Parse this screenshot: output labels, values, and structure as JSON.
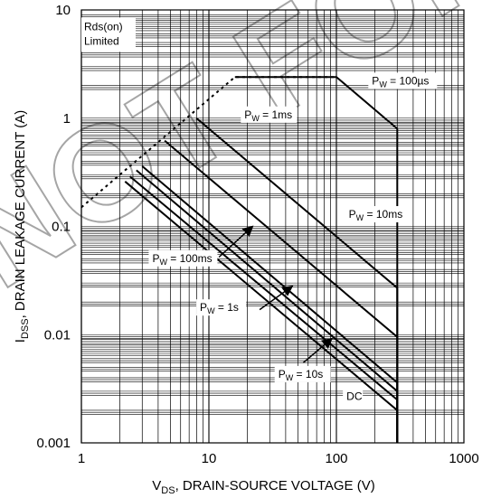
{
  "chart_data": {
    "type": "line",
    "title": "",
    "xlabel": {
      "main": "V",
      "sub": "DS",
      "rest": ", DRAIN-SOURCE VOLTAGE (V)"
    },
    "ylabel": {
      "main": "I",
      "sub": "DSS",
      "rest": ", DRAIN LEAKAGE CURRENT (A)"
    },
    "x_scale": "log",
    "y_scale": "log",
    "xlim": [
      1,
      1000
    ],
    "ylim": [
      0.001,
      10
    ],
    "grid": true,
    "x_ticks": [
      {
        "value": 1,
        "label": "1"
      },
      {
        "value": 10,
        "label": "10"
      },
      {
        "value": 100,
        "label": "100"
      },
      {
        "value": 1000,
        "label": "1000"
      }
    ],
    "y_ticks": [
      {
        "value": 10,
        "label": "10"
      },
      {
        "value": 1,
        "label": "1"
      },
      {
        "value": 0.1,
        "label": "0.1"
      },
      {
        "value": 0.01,
        "label": "0.01"
      },
      {
        "value": 0.001,
        "label": "0.001"
      }
    ],
    "rds_limit_line": {
      "style": "dashed",
      "points": [
        [
          1,
          0.15
        ],
        [
          16,
          2.4
        ],
        [
          100,
          2.4
        ]
      ]
    },
    "soa_curves": [
      {
        "id": "pw-100us",
        "points": [
          [
            16,
            2.4
          ],
          [
            100,
            2.4
          ],
          [
            300,
            0.8
          ],
          [
            300,
            0.001
          ]
        ]
      },
      {
        "id": "pw-1ms",
        "points": [
          [
            8,
            1.0
          ],
          [
            300,
            0.027
          ],
          [
            300,
            0.001
          ]
        ]
      },
      {
        "id": "pw-10ms",
        "points": [
          [
            4.5,
            0.62
          ],
          [
            300,
            0.0095
          ],
          [
            300,
            0.001
          ]
        ]
      },
      {
        "id": "pw-100ms",
        "points": [
          [
            3.0,
            0.36
          ],
          [
            300,
            0.0036
          ],
          [
            300,
            0.001
          ]
        ]
      },
      {
        "id": "pw-1s",
        "points": [
          [
            2.7,
            0.33
          ],
          [
            300,
            0.003
          ],
          [
            300,
            0.001
          ]
        ]
      },
      {
        "id": "pw-10s",
        "points": [
          [
            2.4,
            0.29
          ],
          [
            300,
            0.0025
          ],
          [
            300,
            0.001
          ]
        ]
      },
      {
        "id": "pw-dc",
        "points": [
          [
            2.2,
            0.26
          ],
          [
            300,
            0.002
          ],
          [
            300,
            0.001
          ]
        ]
      }
    ],
    "annotations": [
      {
        "id": "rds-on",
        "lines": [
          "Rds(on)",
          "Limited"
        ],
        "at": [
          1.05,
          6.5
        ]
      },
      {
        "id": "pw-100us",
        "parts": {
          "main": "P",
          "sub": "W",
          "rest": " = 100µs"
        },
        "at": [
          190,
          2.05
        ]
      },
      {
        "id": "pw-1ms",
        "parts": {
          "main": "P",
          "sub": "W",
          "rest": " = 1ms"
        },
        "at": [
          19,
          1.0
        ]
      },
      {
        "id": "pw-10ms",
        "parts": {
          "main": "P",
          "sub": "W",
          "rest": " = 10ms"
        },
        "at": [
          125,
          0.12
        ]
      },
      {
        "id": "pw-100ms",
        "parts": {
          "main": "P",
          "sub": "W",
          "rest": " = 100ms"
        },
        "at": [
          3.6,
          0.047
        ]
      },
      {
        "id": "pw-1s",
        "parts": {
          "main": "P",
          "sub": "W",
          "rest": " = 1s"
        },
        "at": [
          8.5,
          0.0165
        ]
      },
      {
        "id": "pw-10s",
        "parts": {
          "main": "P",
          "sub": "W",
          "rest": " = 10s"
        },
        "at": [
          35,
          0.004
        ]
      },
      {
        "id": "pw-dc",
        "parts": {
          "main": "DC",
          "sub": "",
          "rest": ""
        },
        "at": [
          120,
          0.0025
        ]
      }
    ],
    "arrows": [
      {
        "id": "arrow-100ms",
        "from": [
          12,
          0.052
        ],
        "to": [
          22,
          0.1
        ]
      },
      {
        "id": "arrow-1s",
        "from": [
          25,
          0.017
        ],
        "to": [
          45,
          0.028
        ]
      },
      {
        "id": "arrow-10s",
        "from": [
          55,
          0.0055
        ],
        "to": [
          92,
          0.0092
        ]
      }
    ],
    "watermark": "NOT FOR"
  }
}
